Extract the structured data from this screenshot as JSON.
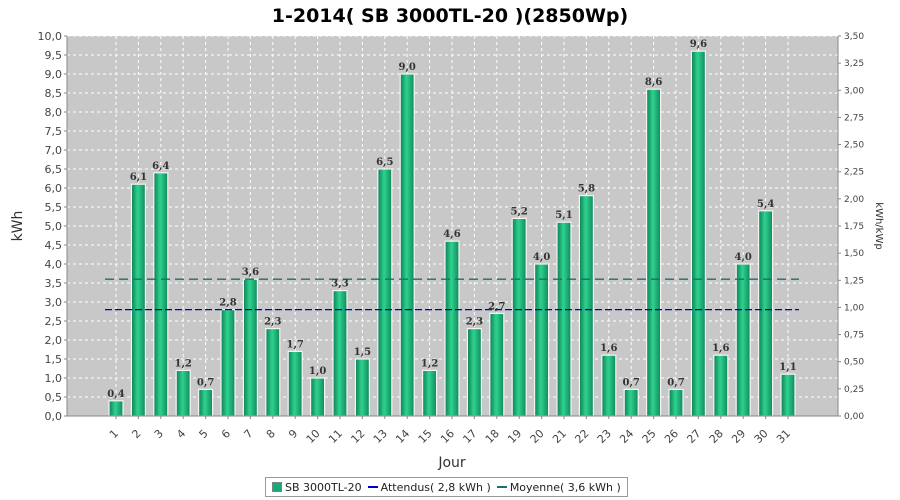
{
  "chart_data": {
    "type": "bar",
    "title": "1-2014( SB 3000TL-20 )(2850Wp)",
    "xlabel": "Jour",
    "ylabel": "kWh",
    "y2label": "kWh/kWp",
    "ylim": [
      0,
      10
    ],
    "y2lim": [
      0,
      3.5
    ],
    "categories": [
      "1",
      "2",
      "3",
      "4",
      "5",
      "6",
      "7",
      "8",
      "9",
      "10",
      "11",
      "12",
      "13",
      "14",
      "15",
      "16",
      "17",
      "18",
      "19",
      "20",
      "21",
      "22",
      "23",
      "24",
      "25",
      "26",
      "27",
      "28",
      "29",
      "30",
      "31"
    ],
    "series": [
      {
        "name": "SB 3000TL-20",
        "values": [
          0.4,
          6.1,
          6.4,
          1.2,
          0.7,
          2.8,
          3.6,
          2.3,
          1.7,
          1.0,
          3.3,
          1.5,
          6.5,
          9.0,
          1.2,
          4.6,
          2.3,
          2.7,
          5.2,
          4.0,
          5.1,
          5.8,
          1.6,
          0.7,
          8.6,
          0.7,
          9.6,
          1.6,
          4.0,
          5.4,
          1.1
        ],
        "value_labels": [
          "0,4",
          "6,1",
          "6,4",
          "1,2",
          "0,7",
          "2,8",
          "3,6",
          "2,3",
          "1,7",
          "1,0",
          "3,3",
          "1,5",
          "6,5",
          "9,0",
          "1,2",
          "4,6",
          "2,3",
          "2,7",
          "5,2",
          "4,0",
          "5,1",
          "5,8",
          "1,6",
          "0,7",
          "8,6",
          "0,7",
          "9,6",
          "1,6",
          "4,0",
          "5,4",
          "1,1"
        ],
        "color": "#1aa876"
      }
    ],
    "reference_lines": [
      {
        "name": "Attendus( 2,8 kWh )",
        "value": 2.8,
        "color": "#0000cc"
      },
      {
        "name": "Moyenne( 3,6 kWh )",
        "value": 3.6,
        "color": "#1a6f6a"
      }
    ],
    "y_ticks": [
      "0,0",
      "0,5",
      "1,0",
      "1,5",
      "2,0",
      "2,5",
      "3,0",
      "3,5",
      "4,0",
      "4,5",
      "5,0",
      "5,5",
      "6,0",
      "6,5",
      "7,0",
      "7,5",
      "8,0",
      "8,5",
      "9,0",
      "9,5",
      "10,0"
    ],
    "y2_ticks": [
      "0,00",
      "0,25",
      "0,50",
      "0,75",
      "1,00",
      "1,25",
      "1,50",
      "1,75",
      "2,00",
      "2,25",
      "2,50",
      "2,75",
      "3,00",
      "3,25",
      "3,50"
    ],
    "grid": true,
    "legend_position": "bottom",
    "colors": {
      "plot_background": "#c8c8c8",
      "grid": "#ffffff"
    }
  },
  "legend": {
    "bar_label": "SB 3000TL-20",
    "expected_label": "Attendus( 2,8 kWh )",
    "average_label": "Moyenne( 3,6 kWh )"
  }
}
